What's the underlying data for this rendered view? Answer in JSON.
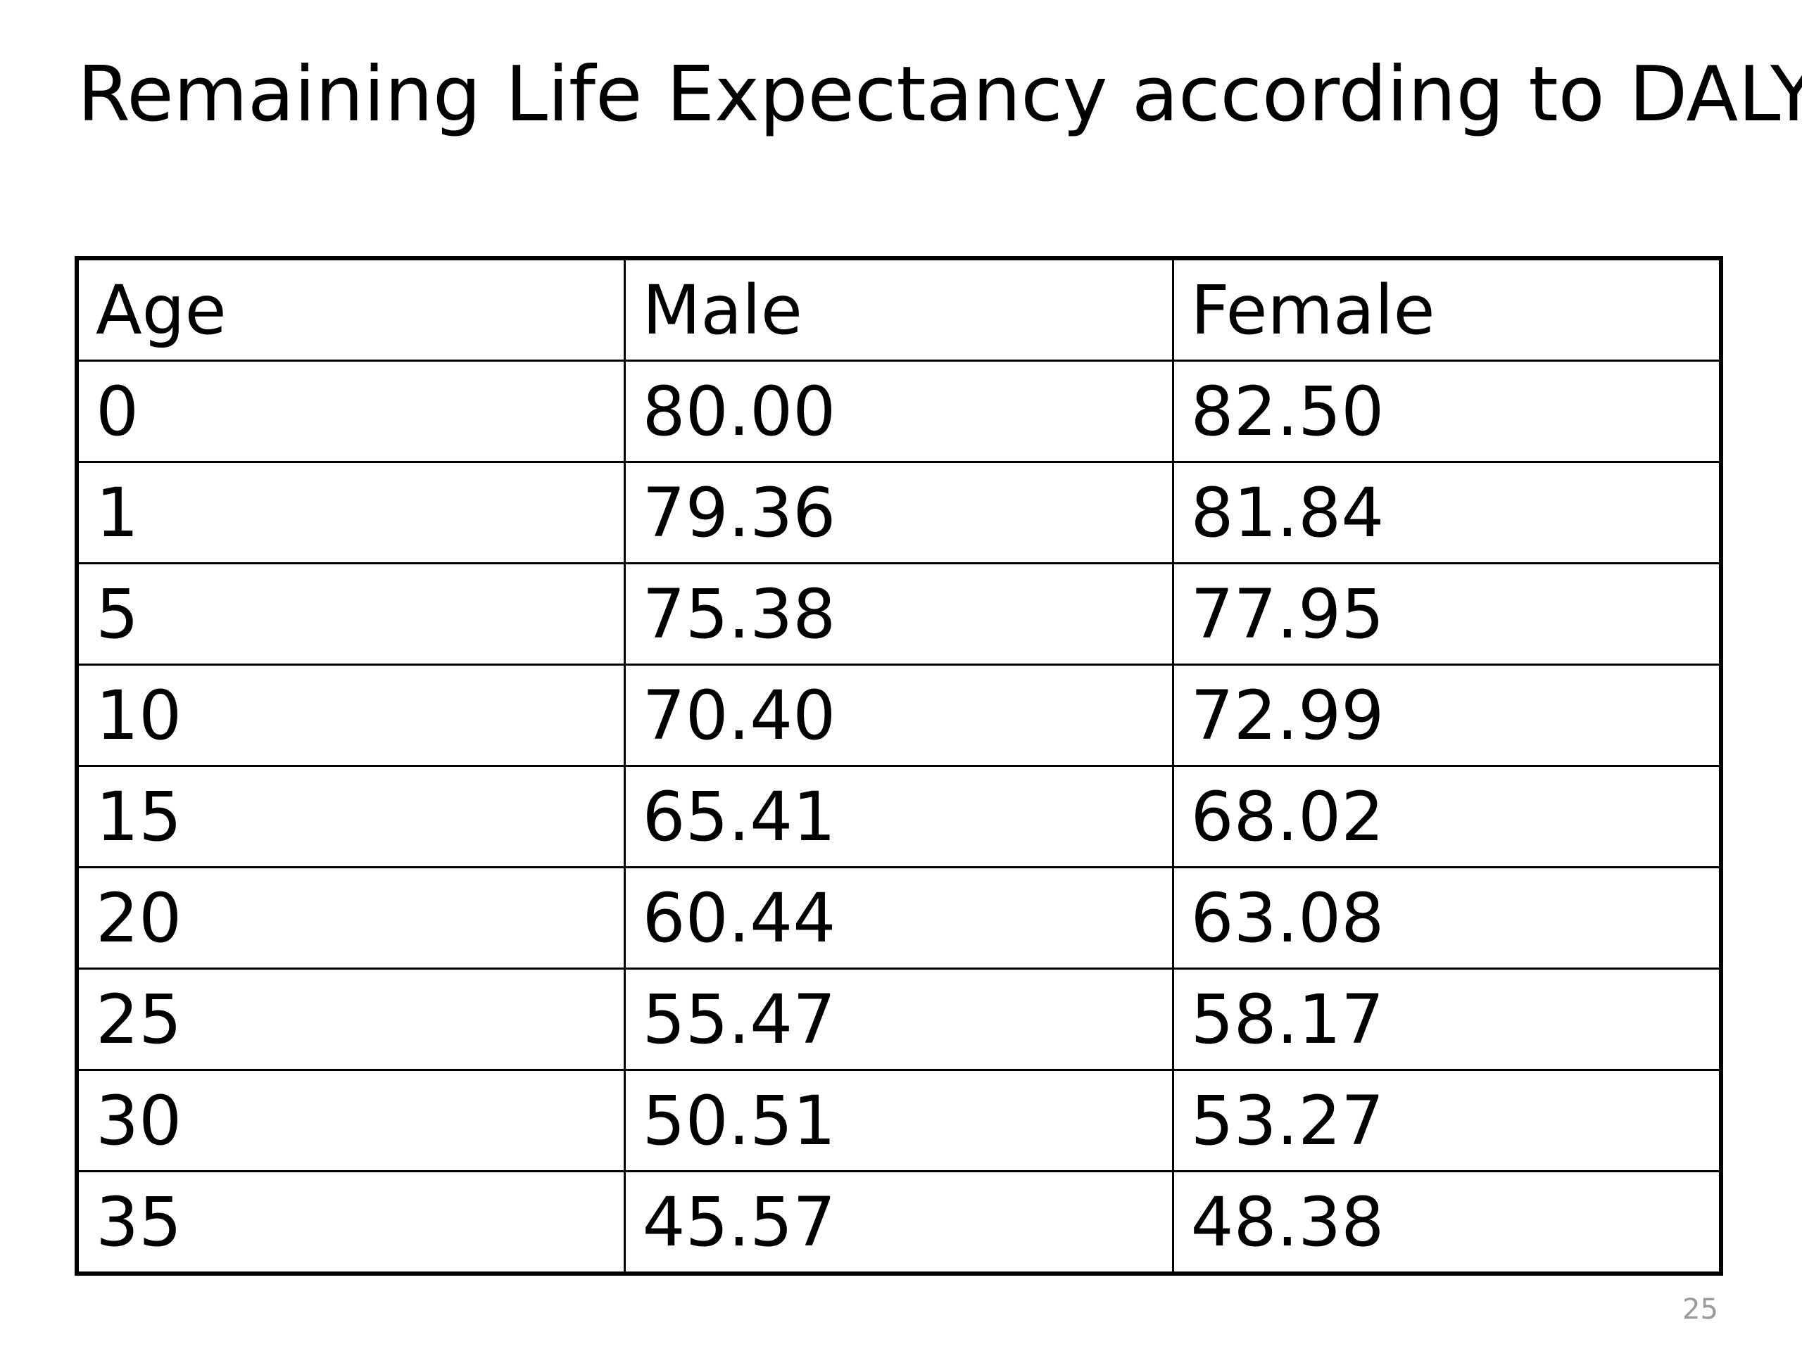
{
  "slide": {
    "title": "Remaining Life Expectancy according to DALYs",
    "number": "25"
  },
  "table": {
    "headers": [
      "Age",
      "Male",
      "Female"
    ],
    "rows": [
      [
        "0",
        "80.00",
        "82.50"
      ],
      [
        "1",
        "79.36",
        "81.84"
      ],
      [
        "5",
        "75.38",
        "77.95"
      ],
      [
        "10",
        "70.40",
        "72.99"
      ],
      [
        "15",
        "65.41",
        "68.02"
      ],
      [
        "20",
        "60.44",
        "63.08"
      ],
      [
        "25",
        "55.47",
        "58.17"
      ],
      [
        "30",
        "50.51",
        "53.27"
      ],
      [
        "35",
        "45.57",
        "48.38"
      ]
    ]
  }
}
